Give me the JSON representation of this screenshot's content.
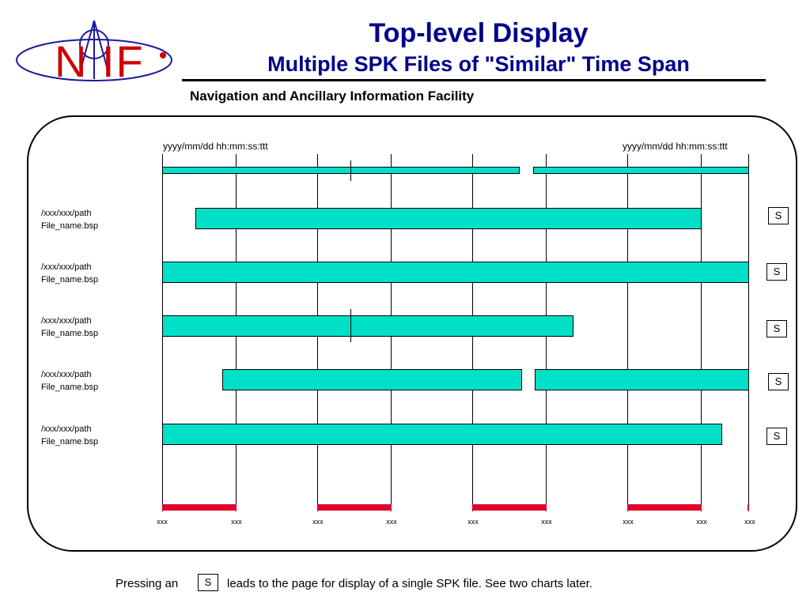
{
  "header": {
    "title": "Top-level Display",
    "subtitle": "Multiple SPK Files of \"Similar\" Time Span",
    "organization": "Navigation and Ancillary Information Facility",
    "logo_text": "N  IF"
  },
  "timeline": {
    "start_time_label": "yyyy/mm/dd hh:mm:ss:ttt",
    "end_time_label": "yyyy/mm/dd hh:mm:ss:ttt",
    "axis_labels": [
      "xxx",
      "xxx",
      "xxx",
      "xxx",
      "xxx",
      "xxx",
      "xxx",
      "xxx",
      "xxx"
    ]
  },
  "files": [
    {
      "path": "/xxx/xxx/path",
      "name": "File_name.bsp",
      "button": "S"
    },
    {
      "path": "/xxx/xxx/path",
      "name": "File_name.bsp",
      "button": "S"
    },
    {
      "path": "/xxx/xxx/path",
      "name": "File_name.bsp",
      "button": "S"
    },
    {
      "path": "/xxx/xxx/path",
      "name": "File_name.bsp",
      "button": "S"
    },
    {
      "path": "/xxx/xxx/path",
      "name": "File_name.bsp",
      "button": "S"
    }
  ],
  "footer": {
    "before": "Pressing an",
    "button": "S",
    "after": "leads to the page for display of a single SPK file.  See two charts later."
  },
  "colors": {
    "title": "#00008b",
    "bar_fill": "#00e0c8",
    "axis_segment": "#e0002a",
    "logo": "#cc0000"
  }
}
